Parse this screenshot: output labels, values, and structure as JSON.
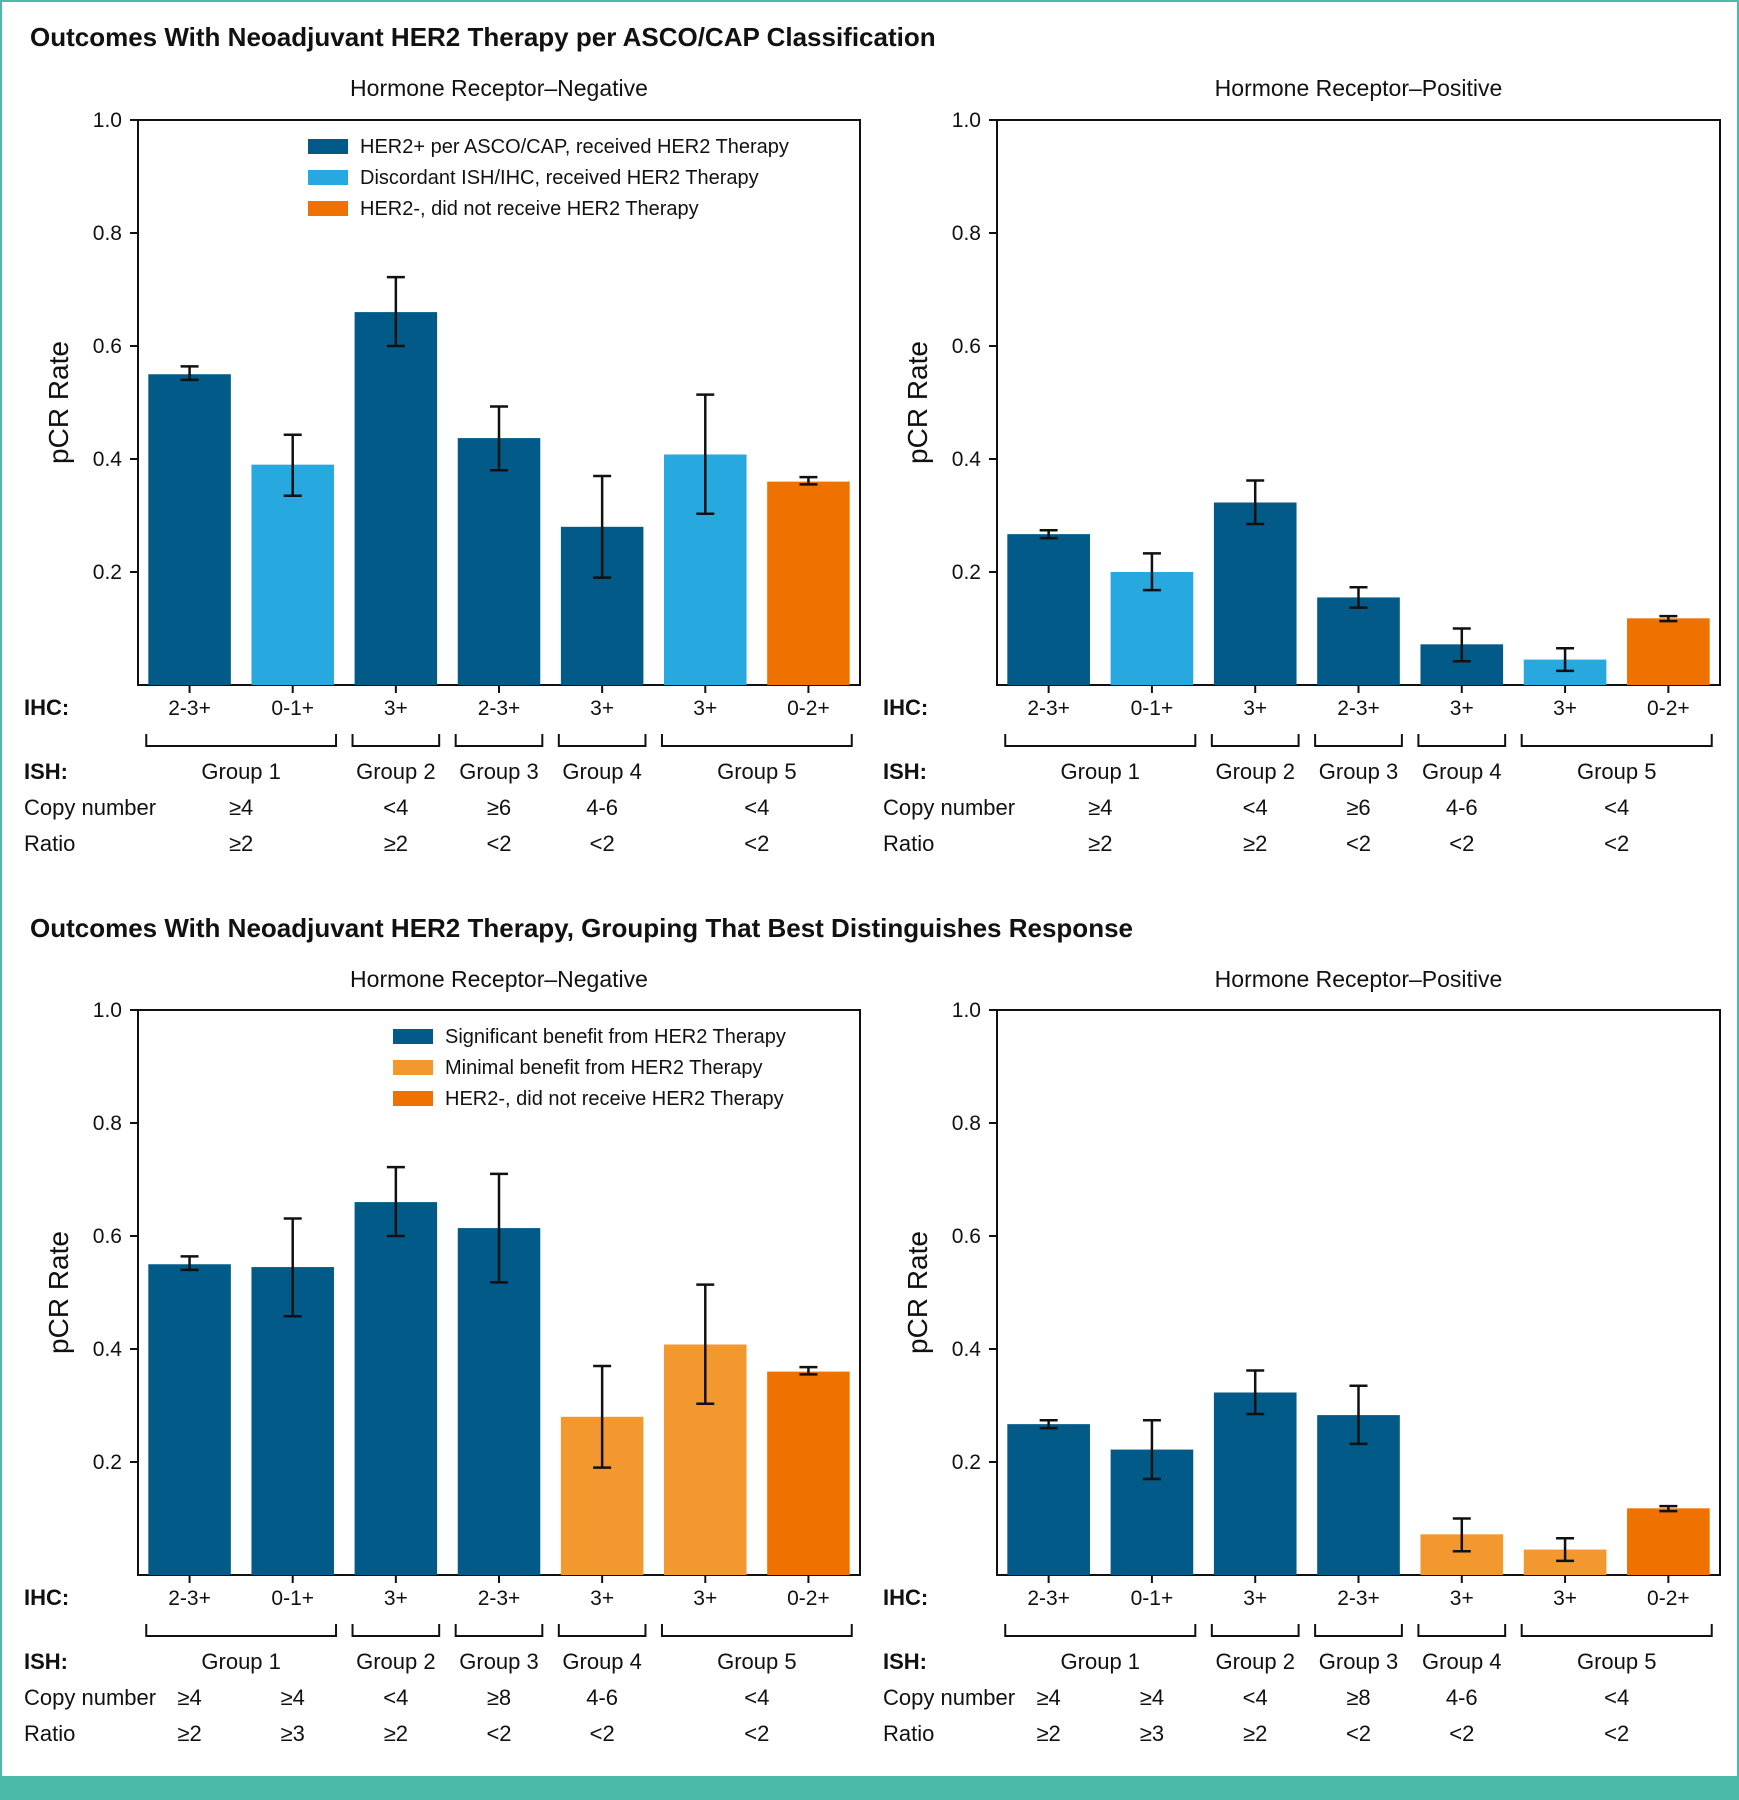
{
  "colors": {
    "dark_blue": "#015a87",
    "light_blue": "#27a8df",
    "orange": "#ef7200",
    "light_orange": "#f3972f",
    "border": "#4dbaa9"
  },
  "sections": [
    {
      "title": "Outcomes With Neoadjuvant HER2 Therapy per ASCO/CAP Classification"
    },
    {
      "title": "Outcomes With Neoadjuvant HER2 Therapy, Grouping That Best Distinguishes Response"
    }
  ],
  "chart_data": [
    {
      "type": "bar",
      "section": 0,
      "title": "Hormone Receptor–Negative",
      "ylabel": "pCR Rate",
      "ylim": [
        0,
        1.0
      ],
      "yticks": [
        "0.2",
        "0.4",
        "0.6",
        "0.8",
        "1.0"
      ],
      "categories": [
        "2-3+",
        "0-1+",
        "3+",
        "2-3+",
        "3+",
        "3+",
        "0-2+"
      ],
      "values": [
        0.55,
        0.39,
        0.66,
        0.437,
        0.28,
        0.408,
        0.36
      ],
      "err_low": [
        0.54,
        0.335,
        0.6,
        0.38,
        0.19,
        0.303,
        0.355
      ],
      "err_high": [
        0.564,
        0.443,
        0.722,
        0.493,
        0.37,
        0.514,
        0.368
      ],
      "bar_colors": [
        "#015a87",
        "#27a8df",
        "#015a87",
        "#015a87",
        "#015a87",
        "#27a8df",
        "#ef7200"
      ],
      "legend": [
        {
          "label": "HER2+ per ASCO/CAP, received HER2 Therapy",
          "color": "#015a87"
        },
        {
          "label": "Discordant ISH/IHC, received HER2 Therapy",
          "color": "#27a8df"
        },
        {
          "label": "HER2-, did not receive HER2 Therapy",
          "color": "#ef7200"
        }
      ]
    },
    {
      "type": "bar",
      "section": 0,
      "title": "Hormone Receptor–Positive",
      "ylabel": "pCR Rate",
      "ylim": [
        0,
        1.0
      ],
      "yticks": [
        "0.2",
        "0.4",
        "0.6",
        "0.8",
        "1.0"
      ],
      "categories": [
        "2-3+",
        "0-1+",
        "3+",
        "2-3+",
        "3+",
        "3+",
        "0-2+"
      ],
      "values": [
        0.267,
        0.2,
        0.323,
        0.155,
        0.072,
        0.045,
        0.118
      ],
      "err_low": [
        0.26,
        0.168,
        0.285,
        0.137,
        0.042,
        0.025,
        0.113
      ],
      "err_high": [
        0.274,
        0.233,
        0.362,
        0.173,
        0.1,
        0.065,
        0.122
      ],
      "bar_colors": [
        "#015a87",
        "#27a8df",
        "#015a87",
        "#015a87",
        "#015a87",
        "#27a8df",
        "#ef7200"
      ],
      "legend": []
    },
    {
      "type": "bar",
      "section": 1,
      "title": "Hormone Receptor–Negative",
      "ylabel": "pCR Rate",
      "ylim": [
        0,
        1.0
      ],
      "yticks": [
        "0.2",
        "0.4",
        "0.6",
        "0.8",
        "1.0"
      ],
      "categories": [
        "2-3+",
        "0-1+",
        "3+",
        "2-3+",
        "3+",
        "3+",
        "0-2+"
      ],
      "values": [
        0.55,
        0.545,
        0.66,
        0.614,
        0.28,
        0.408,
        0.36
      ],
      "err_low": [
        0.54,
        0.458,
        0.6,
        0.518,
        0.19,
        0.303,
        0.355
      ],
      "err_high": [
        0.564,
        0.631,
        0.722,
        0.71,
        0.37,
        0.514,
        0.368
      ],
      "bar_colors": [
        "#015a87",
        "#015a87",
        "#015a87",
        "#015a87",
        "#f3972f",
        "#f3972f",
        "#ef7200"
      ],
      "legend": [
        {
          "label": "Significant benefit from HER2 Therapy",
          "color": "#015a87"
        },
        {
          "label": "Minimal benefit from HER2 Therapy",
          "color": "#f3972f"
        },
        {
          "label": "HER2-, did not receive HER2 Therapy",
          "color": "#ef7200"
        }
      ]
    },
    {
      "type": "bar",
      "section": 1,
      "title": "Hormone Receptor–Positive",
      "ylabel": "pCR Rate",
      "ylim": [
        0,
        1.0
      ],
      "yticks": [
        "0.2",
        "0.4",
        "0.6",
        "0.8",
        "1.0"
      ],
      "categories": [
        "2-3+",
        "0-1+",
        "3+",
        "2-3+",
        "3+",
        "3+",
        "0-2+"
      ],
      "values": [
        0.267,
        0.222,
        0.323,
        0.283,
        0.072,
        0.045,
        0.118
      ],
      "err_low": [
        0.26,
        0.17,
        0.285,
        0.232,
        0.042,
        0.025,
        0.113
      ],
      "err_high": [
        0.274,
        0.274,
        0.362,
        0.335,
        0.1,
        0.065,
        0.122
      ],
      "bar_colors": [
        "#015a87",
        "#015a87",
        "#015a87",
        "#015a87",
        "#f3972f",
        "#f3972f",
        "#ef7200"
      ],
      "legend": []
    }
  ],
  "ish_tables": [
    {
      "ihc_label": "IHC:",
      "ish_label": "ISH:",
      "copy_label": "Copy number",
      "ratio_label": "Ratio",
      "groups": [
        {
          "name": "Group 1",
          "copy": [
            "≥4"
          ],
          "ratio": [
            "≥2"
          ]
        },
        {
          "name": "Group 2",
          "copy": [
            "<4"
          ],
          "ratio": [
            "≥2"
          ]
        },
        {
          "name": "Group 3",
          "copy": [
            "≥6"
          ],
          "ratio": [
            "<2"
          ]
        },
        {
          "name": "Group 4",
          "copy": [
            "4-6"
          ],
          "ratio": [
            "<2"
          ]
        },
        {
          "name": "Group 5",
          "copy": [
            "<4"
          ],
          "ratio": [
            "<2"
          ]
        }
      ]
    },
    {
      "ihc_label": "IHC:",
      "ish_label": "ISH:",
      "copy_label": "Copy number",
      "ratio_label": "Ratio",
      "groups": [
        {
          "name": "Group 1",
          "copy": [
            "≥4",
            "≥4"
          ],
          "ratio": [
            "≥2",
            "≥3"
          ]
        },
        {
          "name": "Group 2",
          "copy": [
            "<4"
          ],
          "ratio": [
            "≥2"
          ]
        },
        {
          "name": "Group 3",
          "copy": [
            "≥8"
          ],
          "ratio": [
            "<2"
          ]
        },
        {
          "name": "Group 4",
          "copy": [
            "4-6"
          ],
          "ratio": [
            "<2"
          ]
        },
        {
          "name": "Group 5",
          "copy": [
            "<4"
          ],
          "ratio": [
            "<2"
          ]
        }
      ]
    }
  ]
}
